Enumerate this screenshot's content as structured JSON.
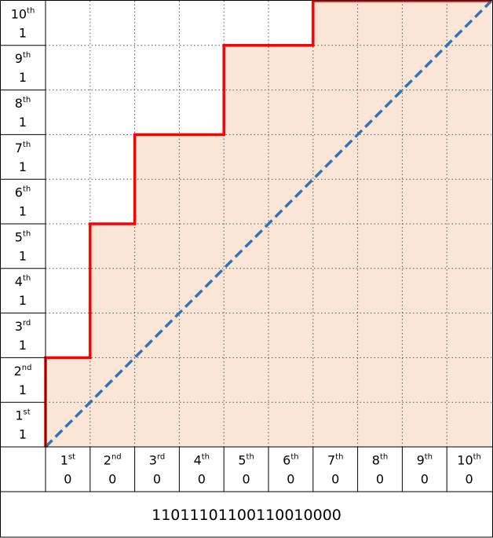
{
  "rows": [
    {
      "ordinal": "1",
      "suffix": "st",
      "bit": "1"
    },
    {
      "ordinal": "2",
      "suffix": "nd",
      "bit": "1"
    },
    {
      "ordinal": "3",
      "suffix": "rd",
      "bit": "1"
    },
    {
      "ordinal": "4",
      "suffix": "th",
      "bit": "1"
    },
    {
      "ordinal": "5",
      "suffix": "th",
      "bit": "1"
    },
    {
      "ordinal": "6",
      "suffix": "th",
      "bit": "1"
    },
    {
      "ordinal": "7",
      "suffix": "th",
      "bit": "1"
    },
    {
      "ordinal": "8",
      "suffix": "th",
      "bit": "1"
    },
    {
      "ordinal": "9",
      "suffix": "th",
      "bit": "1"
    },
    {
      "ordinal": "10",
      "suffix": "th",
      "bit": "1"
    }
  ],
  "columns": [
    {
      "ordinal": "1",
      "suffix": "st",
      "bit": "0"
    },
    {
      "ordinal": "2",
      "suffix": "nd",
      "bit": "0"
    },
    {
      "ordinal": "3",
      "suffix": "rd",
      "bit": "0"
    },
    {
      "ordinal": "4",
      "suffix": "th",
      "bit": "0"
    },
    {
      "ordinal": "5",
      "suffix": "th",
      "bit": "0"
    },
    {
      "ordinal": "6",
      "suffix": "th",
      "bit": "0"
    },
    {
      "ordinal": "7",
      "suffix": "th",
      "bit": "0"
    },
    {
      "ordinal": "8",
      "suffix": "th",
      "bit": "0"
    },
    {
      "ordinal": "9",
      "suffix": "th",
      "bit": "0"
    },
    {
      "ordinal": "10",
      "suffix": "th",
      "bit": "0"
    }
  ],
  "sequence": "11011101100110010000"
}
